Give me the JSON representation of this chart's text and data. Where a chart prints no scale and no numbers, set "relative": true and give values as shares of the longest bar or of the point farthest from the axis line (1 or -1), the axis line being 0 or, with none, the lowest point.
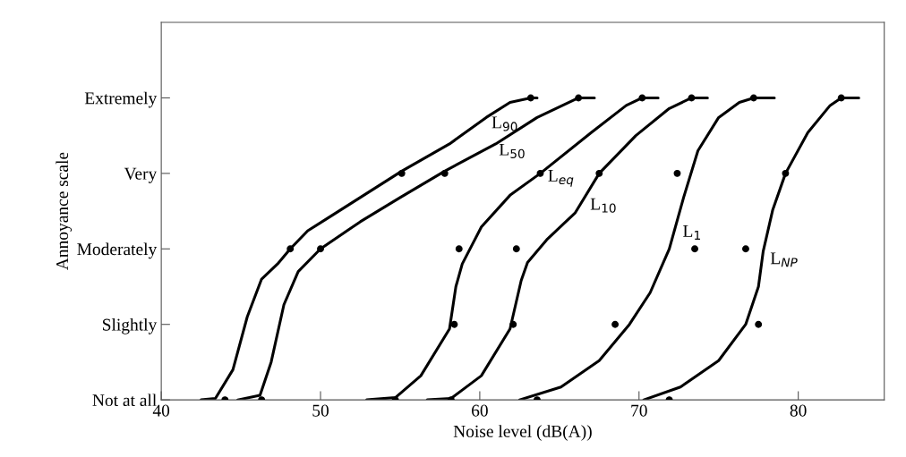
{
  "chart_data": {
    "type": "line",
    "xlabel": "Noise level (dB(A))",
    "ylabel": "Annoyance scale",
    "xlim": [
      40,
      85.4
    ],
    "xticks": [
      40,
      50,
      60,
      70,
      80
    ],
    "y_categories": [
      "Extremely",
      "Very",
      "Moderately",
      "Slightly",
      "Not at all"
    ],
    "relative": true,
    "grid": false,
    "legend": false,
    "line_style": "solid",
    "marker": "none",
    "series": [
      {
        "name": "L$_{90}$",
        "color": "#000000",
        "x": [
          42.5,
          43.4,
          44.5,
          45.4,
          46.3,
          47.3,
          48.1,
          49.2,
          50.7,
          55.1,
          58.1,
          60.4,
          61.9,
          63.2,
          63.6
        ],
        "values": [
          0,
          0.005,
          0.1,
          0.275,
          0.4,
          0.45,
          0.5,
          0.56,
          0.61,
          0.7575,
          0.8475,
          0.935,
          0.985,
          1,
          1
        ]
      },
      {
        "name": "L$_{50}$",
        "color": "#000000",
        "x": [
          44.8,
          46.2,
          46.9,
          47.7,
          48.6,
          50.0,
          52.5,
          55.0,
          57.8,
          61.0,
          63.6,
          66.2,
          67.2
        ],
        "values": [
          0,
          0.015,
          0.125,
          0.315,
          0.425,
          0.5,
          0.59,
          0.67,
          0.7575,
          0.8475,
          0.935,
          1,
          1
        ]
      },
      {
        "name": "L$_{eq}$",
        "color": "#000000",
        "x": [
          52.9,
          54.7,
          56.3,
          58.1,
          58.5,
          58.9,
          60.1,
          61.9,
          63.8,
          67.0,
          69.2,
          70.2,
          71.2
        ],
        "values": [
          0,
          0.0075,
          0.08,
          0.235,
          0.375,
          0.45,
          0.5725,
          0.6775,
          0.75,
          0.885,
          0.975,
          1,
          1
        ]
      },
      {
        "name": "L$_{10}$",
        "color": "#000000",
        "x": [
          56.7,
          58.2,
          60.1,
          61.9,
          62.6,
          63.0,
          64.2,
          66.0,
          67.5,
          69.8,
          71.9,
          73.3,
          74.3
        ],
        "values": [
          0,
          0.005,
          0.08,
          0.235,
          0.395,
          0.455,
          0.53,
          0.62,
          0.75,
          0.875,
          0.965,
          1,
          1
        ]
      },
      {
        "name": "L$_{1}$",
        "color": "#000000",
        "x": [
          62.5,
          65.1,
          67.5,
          69.4,
          70.7,
          71.9,
          72.8,
          73.7,
          75.0,
          76.3,
          77.2,
          78.5
        ],
        "values": [
          0,
          0.0425,
          0.13,
          0.25,
          0.355,
          0.5,
          0.67,
          0.825,
          0.935,
          0.985,
          1,
          1
        ]
      },
      {
        "name": "L$_{NP}$",
        "color": "#000000",
        "x": [
          70.3,
          72.6,
          75.0,
          76.7,
          77.5,
          77.8,
          78.4,
          79.2,
          80.6,
          82.0,
          82.7,
          83.8
        ],
        "values": [
          0,
          0.0425,
          0.13,
          0.25,
          0.375,
          0.4925,
          0.63,
          0.75,
          0.885,
          0.975,
          1,
          1
        ]
      },
      {
        "type": "scatter",
        "color": "#000000",
        "marker": "circle",
        "x": [
          44.0,
          48.1,
          55.1,
          63.2,
          46.3,
          50.0,
          57.8,
          66.2,
          54.7,
          58.4,
          58.7,
          63.8,
          70.2,
          58.2,
          62.1,
          62.3,
          67.5,
          73.3,
          63.6,
          68.5,
          73.5,
          72.4,
          77.2,
          71.9,
          77.5,
          76.7,
          79.2,
          82.7
        ],
        "values": [
          0,
          0.5,
          0.75,
          1,
          0,
          0.5,
          0.75,
          1,
          0,
          0.25,
          0.5,
          0.75,
          1,
          0,
          0.25,
          0.5,
          0.75,
          1,
          0,
          0.25,
          0.5,
          0.75,
          1,
          0,
          0.25,
          0.5,
          0.75,
          1
        ]
      }
    ]
  }
}
